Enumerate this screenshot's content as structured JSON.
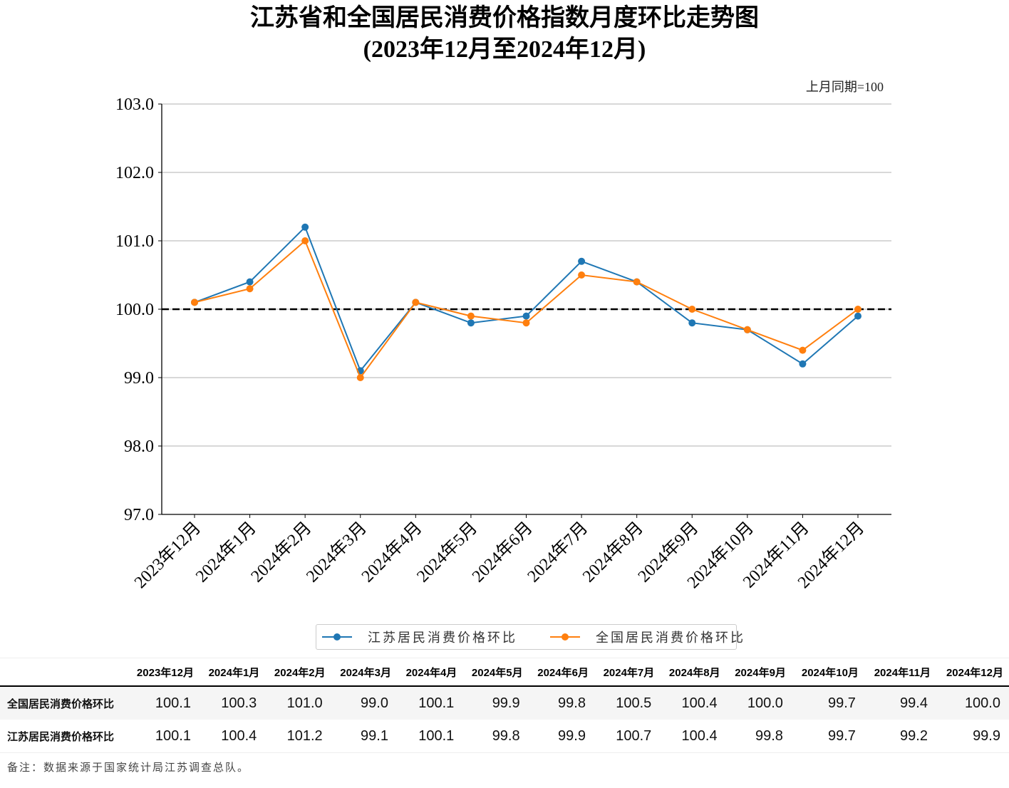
{
  "chart_data": {
    "type": "line",
    "title": "江苏省和全国居民消费价格指数月度环比走势图",
    "subtitle": "(2023年12月至2024年12月)",
    "unit_note": "上月同期=100",
    "xlabel": "",
    "ylabel": "",
    "categories": [
      "2023年12月",
      "2024年1月",
      "2024年2月",
      "2024年3月",
      "2024年4月",
      "2024年5月",
      "2024年6月",
      "2024年7月",
      "2024年8月",
      "2024年9月",
      "2024年10月",
      "2024年11月",
      "2024年12月"
    ],
    "yticks": [
      "97.0",
      "98.0",
      "99.0",
      "100.0",
      "101.0",
      "102.0",
      "103.0"
    ],
    "ylim": [
      97.0,
      103.0
    ],
    "grid": true,
    "reference_line": 100.0,
    "legend_position": "bottom-center",
    "series": [
      {
        "name": "江苏居民消费价格环比",
        "color": "#1f77b4",
        "values": [
          100.1,
          100.4,
          101.2,
          99.1,
          100.1,
          99.8,
          99.9,
          100.7,
          100.4,
          99.8,
          99.7,
          99.2,
          99.9
        ]
      },
      {
        "name": "全国居民消费价格环比",
        "color": "#ff7f0e",
        "values": [
          100.1,
          100.3,
          101.0,
          99.0,
          100.1,
          99.9,
          99.8,
          100.5,
          100.4,
          100.0,
          99.7,
          99.4,
          100.0
        ]
      }
    ]
  },
  "table": {
    "headers": [
      "2023年12月",
      "2024年1月",
      "2024年2月",
      "2024年3月",
      "2024年4月",
      "2024年5月",
      "2024年6月",
      "2024年7月",
      "2024年8月",
      "2024年9月",
      "2024年10月",
      "2024年11月",
      "2024年12月"
    ],
    "rows": [
      {
        "label": "全国居民消费价格环比",
        "values": [
          "100.1",
          "100.3",
          "101.0",
          "99.0",
          "100.1",
          "99.9",
          "99.8",
          "100.5",
          "100.4",
          "100.0",
          "99.7",
          "99.4",
          "100.0"
        ]
      },
      {
        "label": "江苏居民消费价格环比",
        "values": [
          "100.1",
          "100.4",
          "101.2",
          "99.1",
          "100.1",
          "99.8",
          "99.9",
          "100.7",
          "100.4",
          "99.8",
          "99.7",
          "99.2",
          "99.9"
        ]
      }
    ]
  },
  "footnote": "备注：数据来源于国家统计局江苏调查总队。"
}
